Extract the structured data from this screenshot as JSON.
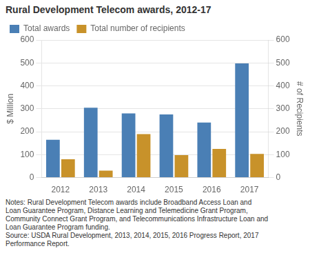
{
  "chart_data": {
    "type": "bar",
    "title": "Rural Development Telecom awards, 2012-17",
    "categories": [
      "2012",
      "2013",
      "2014",
      "2015",
      "2016",
      "2017"
    ],
    "series": [
      {
        "name": "Total awards",
        "color": "#4a7fb5",
        "values": [
          165,
          305,
          280,
          275,
          240,
          498
        ]
      },
      {
        "name": "Total number of recipients",
        "color": "#c8922a",
        "axis": "y2",
        "values": [
          80,
          30,
          190,
          98,
          125,
          103
        ]
      }
    ],
    "ylabel": "$ Million",
    "y2label": "# of Recipients",
    "ylim": [
      0,
      600
    ],
    "yticks": [
      0,
      100,
      200,
      300,
      400,
      500,
      600
    ],
    "y2lim": [
      0,
      600
    ],
    "y2ticks": [
      0,
      100,
      200,
      300,
      400,
      500,
      600
    ],
    "grid": true,
    "legend": "upper left",
    "annotations": [
      "Notes:  Rural Development Telecom awards include Broadband Access Loan and",
      "Loan Guarantee Program, Distance Learning and Telemedicine Grant Program,",
      "Community Connect Grant Program, and Telecommunications Infrastructure Loan and",
      "Loan Guarantee Program funding.",
      "Source: USDA Rural Development, 2013, 2014, 2015, 2016 Progress Report, 2017",
      "Performance Report."
    ]
  }
}
